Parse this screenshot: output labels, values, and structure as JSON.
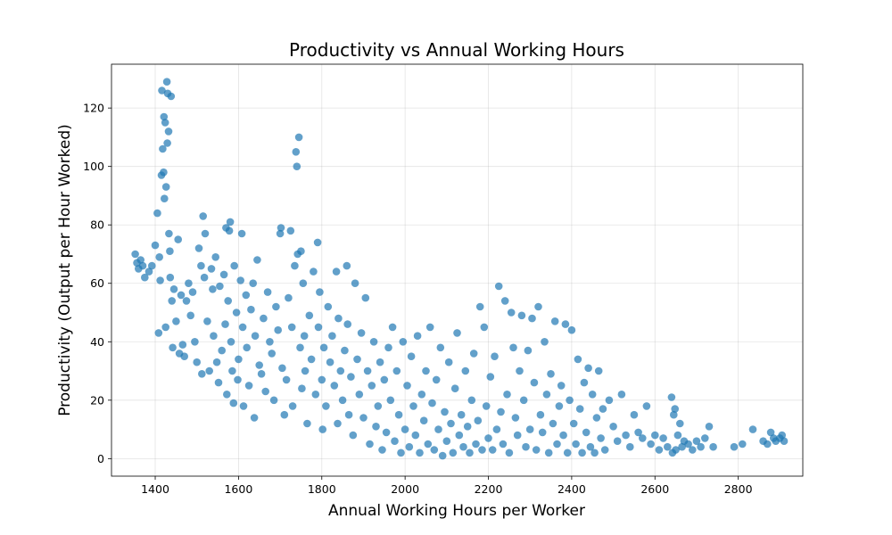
{
  "chart_data": {
    "type": "scatter",
    "title": "Productivity vs Annual Working Hours",
    "xlabel": "Annual Working Hours per Worker",
    "ylabel": "Productivity (Output per Hour Worked)",
    "xlim": [
      1295,
      2955
    ],
    "ylim": [
      -6,
      135
    ],
    "xticks": [
      1400,
      1600,
      1800,
      2000,
      2200,
      2400,
      2600,
      2800
    ],
    "yticks": [
      0,
      20,
      40,
      60,
      80,
      100,
      120
    ],
    "grid": true,
    "marker_color": "#1f77b4",
    "points": [
      [
        1352,
        70
      ],
      [
        1356,
        67
      ],
      [
        1360,
        65
      ],
      [
        1365,
        68
      ],
      [
        1370,
        66
      ],
      [
        1375,
        62
      ],
      [
        1385,
        64
      ],
      [
        1392,
        66
      ],
      [
        1400,
        73
      ],
      [
        1405,
        84
      ],
      [
        1408,
        43
      ],
      [
        1410,
        69
      ],
      [
        1412,
        61
      ],
      [
        1415,
        97
      ],
      [
        1416,
        126
      ],
      [
        1418,
        106
      ],
      [
        1420,
        98
      ],
      [
        1421,
        117
      ],
      [
        1422,
        89
      ],
      [
        1424,
        115
      ],
      [
        1425,
        45
      ],
      [
        1426,
        93
      ],
      [
        1428,
        129
      ],
      [
        1429,
        108
      ],
      [
        1430,
        125
      ],
      [
        1432,
        112
      ],
      [
        1433,
        77
      ],
      [
        1435,
        71
      ],
      [
        1436,
        62
      ],
      [
        1438,
        124
      ],
      [
        1440,
        54
      ],
      [
        1442,
        38
      ],
      [
        1445,
        58
      ],
      [
        1450,
        47
      ],
      [
        1455,
        75
      ],
      [
        1458,
        36
      ],
      [
        1462,
        56
      ],
      [
        1466,
        39
      ],
      [
        1470,
        35
      ],
      [
        1475,
        54
      ],
      [
        1480,
        60
      ],
      [
        1485,
        49
      ],
      [
        1490,
        57
      ],
      [
        1495,
        40
      ],
      [
        1500,
        33
      ],
      [
        1505,
        72
      ],
      [
        1510,
        66
      ],
      [
        1512,
        29
      ],
      [
        1515,
        83
      ],
      [
        1518,
        62
      ],
      [
        1520,
        77
      ],
      [
        1525,
        47
      ],
      [
        1530,
        30
      ],
      [
        1535,
        65
      ],
      [
        1538,
        58
      ],
      [
        1540,
        42
      ],
      [
        1545,
        69
      ],
      [
        1548,
        33
      ],
      [
        1552,
        26
      ],
      [
        1555,
        59
      ],
      [
        1560,
        37
      ],
      [
        1565,
        63
      ],
      [
        1568,
        46
      ],
      [
        1570,
        79
      ],
      [
        1572,
        22
      ],
      [
        1575,
        54
      ],
      [
        1578,
        78
      ],
      [
        1580,
        81
      ],
      [
        1582,
        40
      ],
      [
        1585,
        30
      ],
      [
        1588,
        19
      ],
      [
        1590,
        66
      ],
      [
        1595,
        50
      ],
      [
        1598,
        27
      ],
      [
        1600,
        34
      ],
      [
        1605,
        61
      ],
      [
        1608,
        77
      ],
      [
        1610,
        45
      ],
      [
        1612,
        18
      ],
      [
        1618,
        56
      ],
      [
        1620,
        38
      ],
      [
        1625,
        25
      ],
      [
        1630,
        51
      ],
      [
        1635,
        60
      ],
      [
        1638,
        14
      ],
      [
        1640,
        42
      ],
      [
        1645,
        68
      ],
      [
        1650,
        32
      ],
      [
        1655,
        29
      ],
      [
        1660,
        48
      ],
      [
        1665,
        23
      ],
      [
        1670,
        57
      ],
      [
        1675,
        40
      ],
      [
        1680,
        36
      ],
      [
        1685,
        20
      ],
      [
        1690,
        52
      ],
      [
        1695,
        44
      ],
      [
        1700,
        77
      ],
      [
        1702,
        79
      ],
      [
        1705,
        31
      ],
      [
        1710,
        15
      ],
      [
        1715,
        27
      ],
      [
        1720,
        55
      ],
      [
        1725,
        78
      ],
      [
        1728,
        45
      ],
      [
        1730,
        18
      ],
      [
        1735,
        66
      ],
      [
        1738,
        105
      ],
      [
        1740,
        100
      ],
      [
        1742,
        70
      ],
      [
        1745,
        110
      ],
      [
        1748,
        38
      ],
      [
        1750,
        71
      ],
      [
        1752,
        24
      ],
      [
        1755,
        60
      ],
      [
        1758,
        42
      ],
      [
        1760,
        30
      ],
      [
        1765,
        12
      ],
      [
        1770,
        49
      ],
      [
        1775,
        34
      ],
      [
        1780,
        64
      ],
      [
        1785,
        22
      ],
      [
        1790,
        74
      ],
      [
        1792,
        45
      ],
      [
        1795,
        57
      ],
      [
        1800,
        27
      ],
      [
        1802,
        10
      ],
      [
        1805,
        38
      ],
      [
        1810,
        18
      ],
      [
        1815,
        52
      ],
      [
        1820,
        33
      ],
      [
        1825,
        42
      ],
      [
        1830,
        25
      ],
      [
        1835,
        64
      ],
      [
        1838,
        12
      ],
      [
        1840,
        48
      ],
      [
        1845,
        30
      ],
      [
        1850,
        20
      ],
      [
        1855,
        37
      ],
      [
        1860,
        66
      ],
      [
        1862,
        46
      ],
      [
        1865,
        15
      ],
      [
        1870,
        28
      ],
      [
        1875,
        8
      ],
      [
        1880,
        60
      ],
      [
        1885,
        34
      ],
      [
        1890,
        22
      ],
      [
        1895,
        43
      ],
      [
        1900,
        14
      ],
      [
        1905,
        55
      ],
      [
        1910,
        30
      ],
      [
        1915,
        5
      ],
      [
        1920,
        25
      ],
      [
        1925,
        40
      ],
      [
        1930,
        11
      ],
      [
        1935,
        18
      ],
      [
        1940,
        33
      ],
      [
        1945,
        3
      ],
      [
        1950,
        27
      ],
      [
        1955,
        9
      ],
      [
        1960,
        38
      ],
      [
        1965,
        20
      ],
      [
        1970,
        45
      ],
      [
        1975,
        6
      ],
      [
        1980,
        30
      ],
      [
        1985,
        15
      ],
      [
        1990,
        2
      ],
      [
        1995,
        40
      ],
      [
        2000,
        10
      ],
      [
        2005,
        25
      ],
      [
        2010,
        4
      ],
      [
        2015,
        35
      ],
      [
        2020,
        18
      ],
      [
        2025,
        8
      ],
      [
        2030,
        42
      ],
      [
        2035,
        2
      ],
      [
        2040,
        22
      ],
      [
        2045,
        13
      ],
      [
        2050,
        30
      ],
      [
        2055,
        5
      ],
      [
        2060,
        45
      ],
      [
        2065,
        19
      ],
      [
        2070,
        3
      ],
      [
        2075,
        27
      ],
      [
        2080,
        10
      ],
      [
        2085,
        38
      ],
      [
        2090,
        1
      ],
      [
        2095,
        16
      ],
      [
        2100,
        6
      ],
      [
        2105,
        33
      ],
      [
        2110,
        12
      ],
      [
        2115,
        2
      ],
      [
        2120,
        24
      ],
      [
        2125,
        43
      ],
      [
        2130,
        8
      ],
      [
        2135,
        15
      ],
      [
        2140,
        4
      ],
      [
        2145,
        30
      ],
      [
        2150,
        11
      ],
      [
        2155,
        2
      ],
      [
        2160,
        20
      ],
      [
        2165,
        36
      ],
      [
        2170,
        5
      ],
      [
        2175,
        13
      ],
      [
        2180,
        52
      ],
      [
        2185,
        3
      ],
      [
        2190,
        45
      ],
      [
        2195,
        18
      ],
      [
        2200,
        7
      ],
      [
        2205,
        28
      ],
      [
        2210,
        3
      ],
      [
        2215,
        35
      ],
      [
        2220,
        10
      ],
      [
        2225,
        59
      ],
      [
        2230,
        16
      ],
      [
        2235,
        5
      ],
      [
        2240,
        54
      ],
      [
        2245,
        22
      ],
      [
        2250,
        2
      ],
      [
        2255,
        50
      ],
      [
        2260,
        38
      ],
      [
        2265,
        14
      ],
      [
        2270,
        8
      ],
      [
        2275,
        30
      ],
      [
        2280,
        49
      ],
      [
        2285,
        20
      ],
      [
        2290,
        4
      ],
      [
        2295,
        37
      ],
      [
        2300,
        10
      ],
      [
        2305,
        48
      ],
      [
        2310,
        26
      ],
      [
        2315,
        3
      ],
      [
        2320,
        52
      ],
      [
        2325,
        15
      ],
      [
        2330,
        9
      ],
      [
        2335,
        40
      ],
      [
        2340,
        22
      ],
      [
        2345,
        2
      ],
      [
        2350,
        29
      ],
      [
        2355,
        12
      ],
      [
        2360,
        47
      ],
      [
        2365,
        5
      ],
      [
        2370,
        18
      ],
      [
        2375,
        25
      ],
      [
        2380,
        8
      ],
      [
        2385,
        46
      ],
      [
        2390,
        2
      ],
      [
        2395,
        20
      ],
      [
        2400,
        44
      ],
      [
        2405,
        12
      ],
      [
        2410,
        5
      ],
      [
        2415,
        34
      ],
      [
        2420,
        17
      ],
      [
        2425,
        2
      ],
      [
        2430,
        26
      ],
      [
        2435,
        9
      ],
      [
        2440,
        31
      ],
      [
        2445,
        4
      ],
      [
        2450,
        22
      ],
      [
        2455,
        2
      ],
      [
        2460,
        14
      ],
      [
        2465,
        30
      ],
      [
        2470,
        7
      ],
      [
        2475,
        17
      ],
      [
        2480,
        3
      ],
      [
        2490,
        20
      ],
      [
        2500,
        11
      ],
      [
        2510,
        6
      ],
      [
        2520,
        22
      ],
      [
        2530,
        8
      ],
      [
        2540,
        4
      ],
      [
        2550,
        15
      ],
      [
        2560,
        9
      ],
      [
        2570,
        7
      ],
      [
        2580,
        18
      ],
      [
        2590,
        5
      ],
      [
        2600,
        8
      ],
      [
        2610,
        3
      ],
      [
        2620,
        7
      ],
      [
        2630,
        4
      ],
      [
        2640,
        21
      ],
      [
        2642,
        2
      ],
      [
        2645,
        15
      ],
      [
        2648,
        17
      ],
      [
        2650,
        3
      ],
      [
        2655,
        8
      ],
      [
        2660,
        12
      ],
      [
        2665,
        4
      ],
      [
        2670,
        6
      ],
      [
        2680,
        5
      ],
      [
        2690,
        3
      ],
      [
        2700,
        6
      ],
      [
        2710,
        4
      ],
      [
        2720,
        7
      ],
      [
        2730,
        11
      ],
      [
        2740,
        4
      ],
      [
        2790,
        4
      ],
      [
        2810,
        5
      ],
      [
        2835,
        10
      ],
      [
        2860,
        6
      ],
      [
        2870,
        5
      ],
      [
        2878,
        9
      ],
      [
        2885,
        7
      ],
      [
        2890,
        6
      ],
      [
        2900,
        7
      ],
      [
        2905,
        8
      ],
      [
        2910,
        6
      ]
    ]
  }
}
